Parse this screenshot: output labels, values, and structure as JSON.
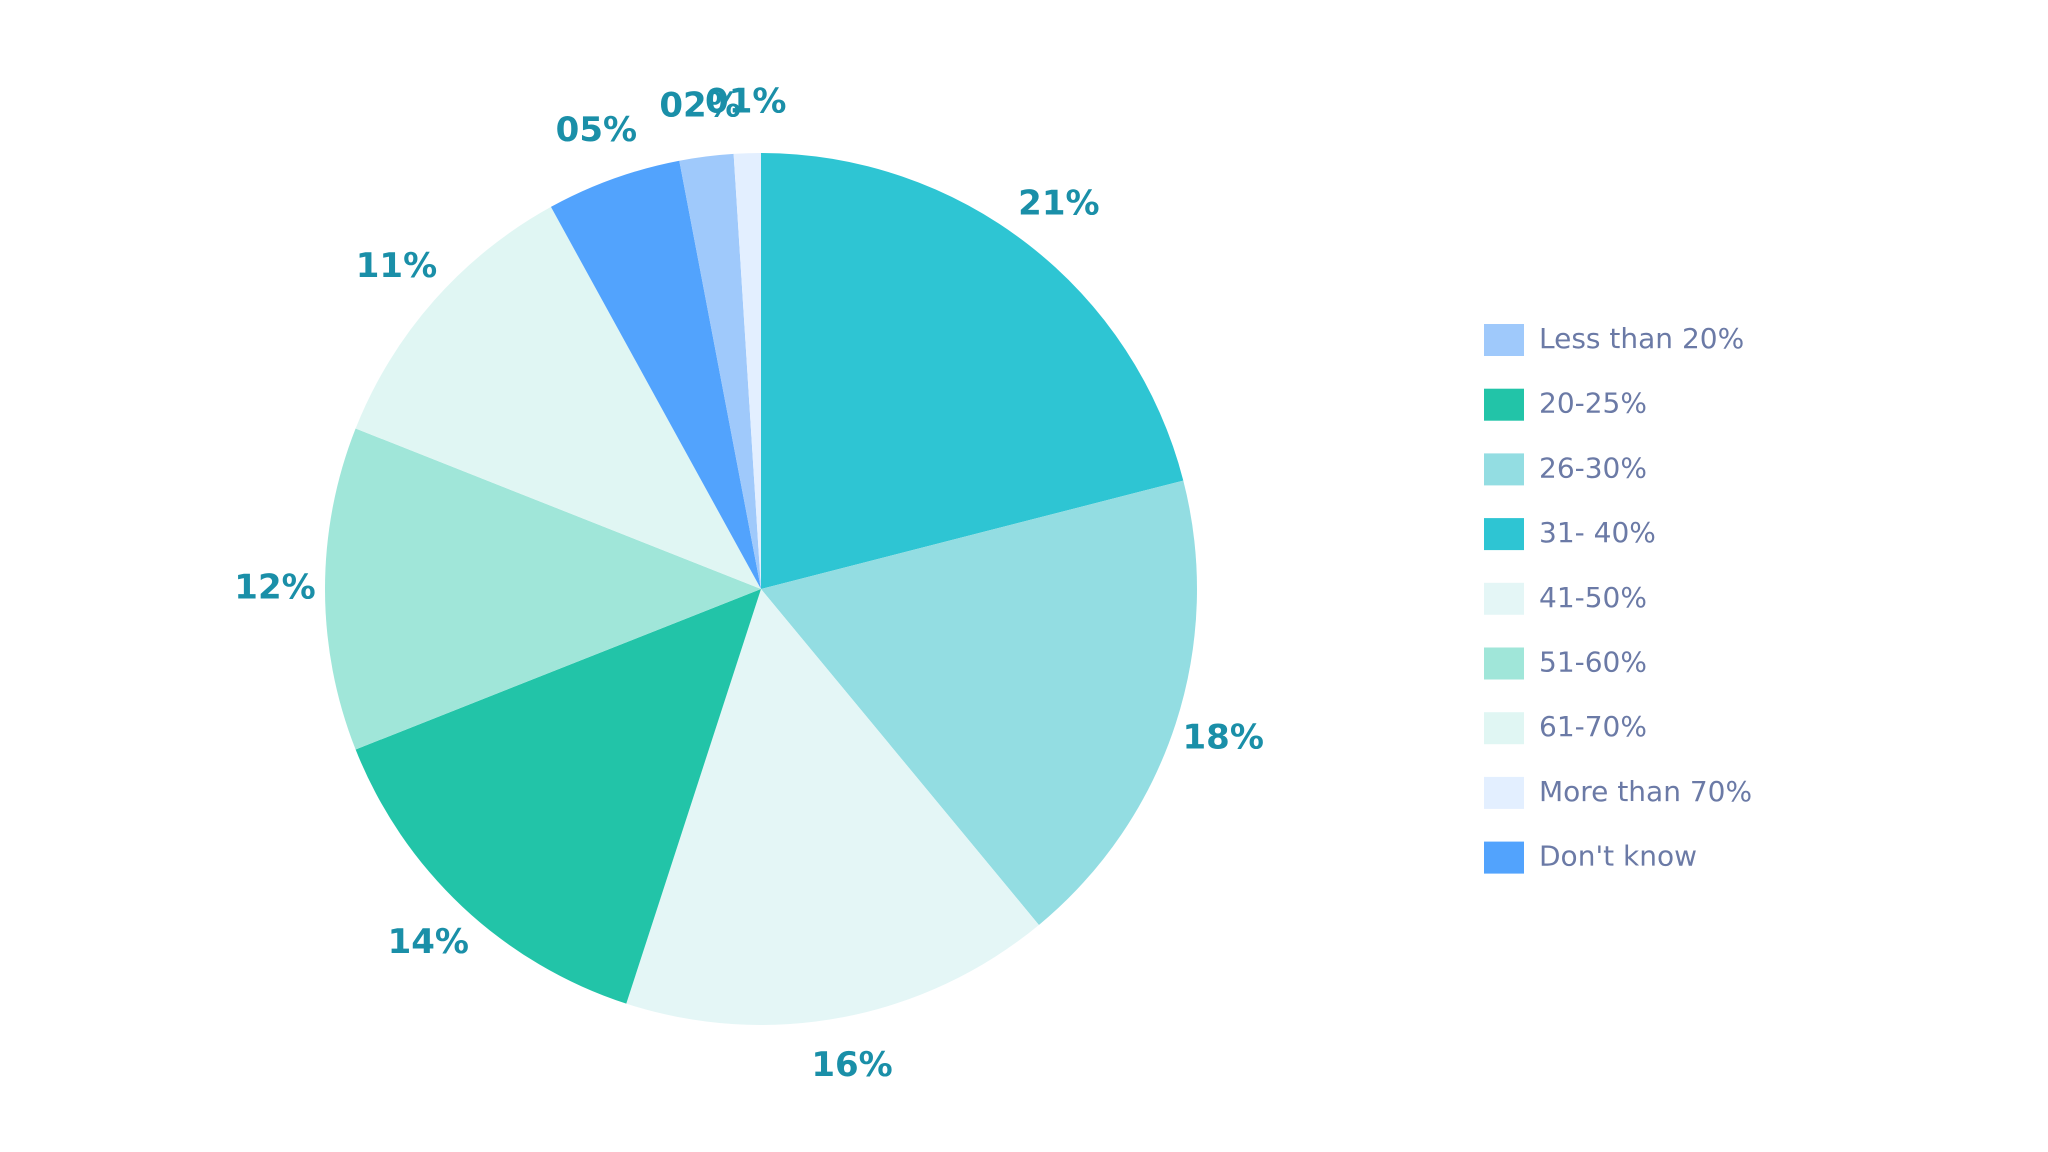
{
  "chart_data": {
    "type": "pie",
    "categories": [
      "Less than 20%",
      "20-25%",
      "26-30%",
      "31- 40%",
      "41-50%",
      "51-60%",
      "61-70%",
      "More than 70%",
      "Don't know"
    ],
    "values": [
      2,
      14,
      18,
      21,
      16,
      12,
      11,
      1,
      5
    ],
    "value_labels": [
      "02%",
      "14%",
      "18%",
      "21%",
      "16%",
      "12%",
      "11%",
      "01%",
      "05%"
    ],
    "colors": [
      "#9fc9fb",
      "#22c4a8",
      "#93dde2",
      "#2ec5d3",
      "#e4f6f6",
      "#a0e6d9",
      "#e0f6f3",
      "#e3efff",
      "#52a3fd"
    ],
    "slice_order": [
      3,
      2,
      4,
      1,
      5,
      6,
      8,
      0,
      7
    ],
    "legend": "right"
  }
}
